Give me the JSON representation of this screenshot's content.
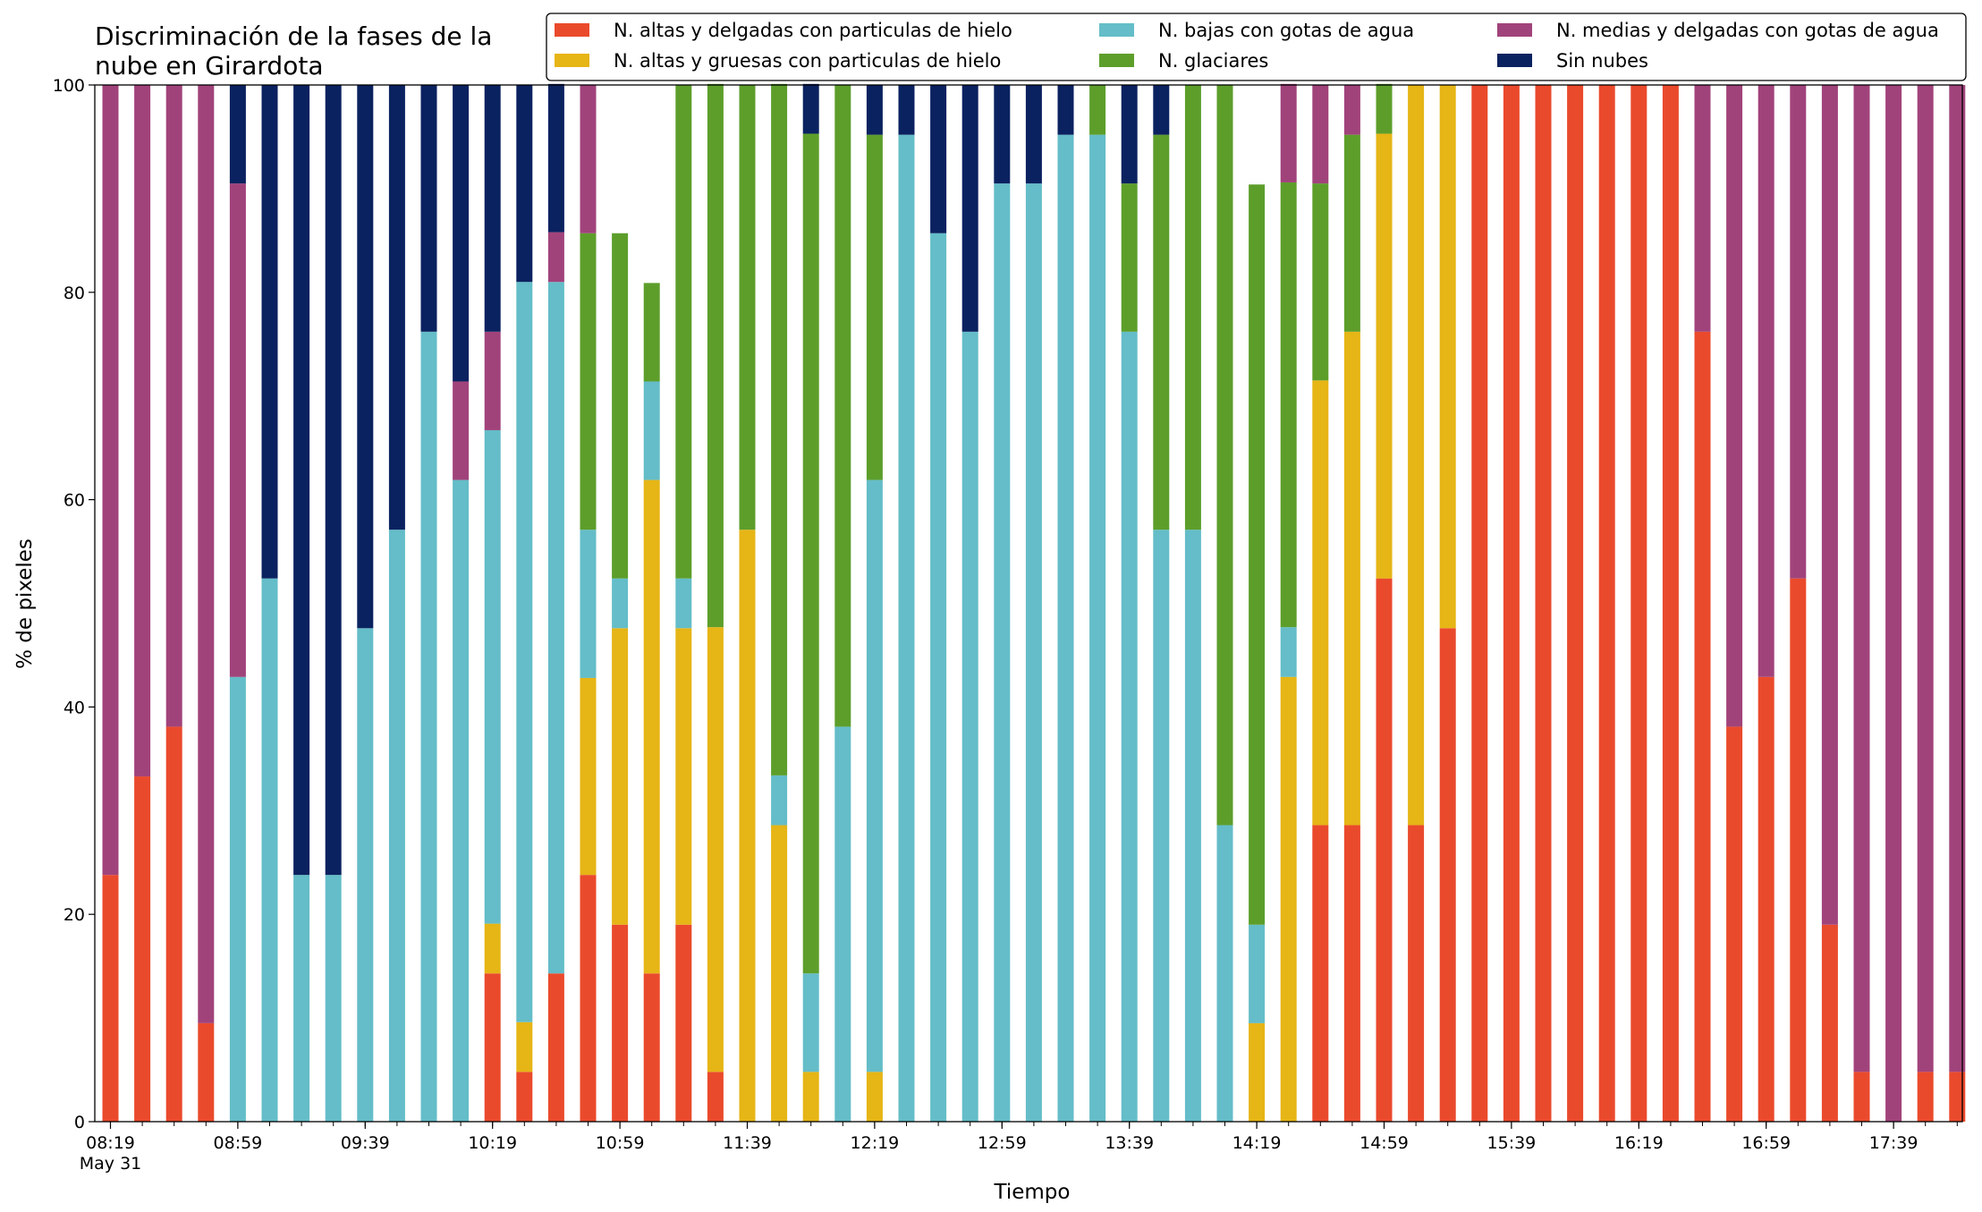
{
  "chart_data": {
    "type": "bar",
    "stacked": true,
    "title_lines": [
      "Discriminación de la fases de la",
      "nube en Girardota"
    ],
    "xlabel": "Tiempo",
    "ylabel": "% de pixeles",
    "ylim": [
      0,
      100
    ],
    "yticks": [
      0,
      20,
      40,
      60,
      80,
      100
    ],
    "grid": false,
    "legend_position": "top-right",
    "legend_columns": 3,
    "x_tick_labels": [
      {
        "bar_index": 0,
        "lines": [
          "08:19",
          "May 31"
        ]
      },
      {
        "bar_index": 4,
        "lines": [
          "08:59"
        ]
      },
      {
        "bar_index": 8,
        "lines": [
          "09:39"
        ]
      },
      {
        "bar_index": 12,
        "lines": [
          "10:19"
        ]
      },
      {
        "bar_index": 16,
        "lines": [
          "10:59"
        ]
      },
      {
        "bar_index": 20,
        "lines": [
          "11:39"
        ]
      },
      {
        "bar_index": 24,
        "lines": [
          "12:19"
        ]
      },
      {
        "bar_index": 28,
        "lines": [
          "12:59"
        ]
      },
      {
        "bar_index": 32,
        "lines": [
          "13:39"
        ]
      },
      {
        "bar_index": 36,
        "lines": [
          "14:19"
        ]
      },
      {
        "bar_index": 40,
        "lines": [
          "14:59"
        ]
      },
      {
        "bar_index": 44,
        "lines": [
          "15:39"
        ]
      },
      {
        "bar_index": 48,
        "lines": [
          "16:19"
        ]
      },
      {
        "bar_index": 52,
        "lines": [
          "16:59"
        ]
      },
      {
        "bar_index": 56,
        "lines": [
          "17:39"
        ]
      }
    ],
    "series": [
      {
        "name": "N. altas y delgadas con particulas de hielo",
        "color": "#ea4a2c",
        "values": [
          23.8,
          33.3,
          38.1,
          9.5,
          0,
          0,
          0,
          0,
          0,
          0,
          0,
          0,
          14.3,
          4.8,
          14.3,
          23.8,
          19.0,
          14.3,
          19.0,
          4.8,
          0,
          0,
          0,
          0,
          0,
          0,
          0,
          0,
          0,
          0,
          0,
          0,
          0,
          0,
          0,
          0,
          0,
          0,
          28.6,
          28.6,
          52.4,
          28.6,
          47.6,
          100,
          100,
          100,
          100,
          100,
          100,
          100,
          76.2,
          38.1,
          42.9,
          52.4,
          19.0,
          4.8,
          0,
          4.8,
          4.8
        ]
      },
      {
        "name": "N. altas y gruesas con particulas de hielo",
        "color": "#e6b516",
        "values": [
          0,
          0,
          0,
          0,
          0,
          0,
          0,
          0,
          0,
          0,
          0,
          0,
          4.8,
          4.8,
          0,
          19.0,
          28.6,
          47.6,
          28.6,
          42.9,
          57.1,
          28.6,
          4.8,
          0,
          4.8,
          0,
          0,
          0,
          0,
          0,
          0,
          0,
          0,
          0,
          0,
          0,
          9.5,
          42.9,
          42.9,
          47.6,
          42.9,
          71.4,
          52.4,
          0,
          0,
          0,
          0,
          0,
          0,
          0,
          0,
          0,
          0,
          0,
          0,
          0,
          0,
          0,
          0
        ]
      },
      {
        "name": "N. bajas con gotas de agua",
        "color": "#64bdc8",
        "values": [
          0,
          0,
          0,
          0,
          42.9,
          52.4,
          23.8,
          23.8,
          47.6,
          57.1,
          76.2,
          61.9,
          47.6,
          71.4,
          66.7,
          14.3,
          4.8,
          9.5,
          4.8,
          0,
          0,
          4.8,
          9.5,
          38.1,
          57.1,
          95.2,
          85.7,
          76.2,
          90.5,
          90.5,
          95.2,
          95.2,
          76.2,
          57.1,
          57.1,
          28.6,
          9.5,
          4.8,
          0,
          0,
          0,
          0,
          0,
          0,
          0,
          0,
          0,
          0,
          0,
          0,
          0,
          0,
          0,
          0,
          0,
          0,
          0,
          0,
          0
        ]
      },
      {
        "name": "N. glaciares",
        "color": "#5d9e2b",
        "values": [
          0,
          0,
          0,
          0,
          0,
          0,
          0,
          0,
          0,
          0,
          0,
          0,
          0,
          0,
          0,
          28.6,
          33.3,
          9.5,
          47.6,
          52.4,
          42.9,
          66.7,
          81.0,
          61.9,
          33.3,
          0,
          0,
          0,
          0,
          0,
          0,
          4.8,
          14.3,
          38.1,
          42.9,
          71.4,
          71.4,
          42.9,
          19.0,
          19.0,
          4.8,
          0,
          0,
          0,
          0,
          0,
          0,
          0,
          0,
          0,
          0,
          0,
          0,
          0,
          0,
          0,
          0,
          0,
          0
        ]
      },
      {
        "name": "N. medias y delgadas con gotas de agua",
        "color": "#a1437b",
        "values": [
          76.2,
          66.7,
          61.9,
          90.5,
          47.6,
          0,
          0,
          0,
          0,
          0,
          0,
          9.5,
          9.5,
          0,
          4.8,
          14.3,
          0,
          0,
          0,
          0,
          0,
          0,
          0,
          0,
          0,
          0,
          0,
          0,
          0,
          0,
          0,
          0,
          0,
          0,
          0,
          0,
          0,
          9.5,
          9.5,
          4.8,
          0,
          0,
          0,
          0,
          0,
          0,
          0,
          0,
          0,
          0,
          23.8,
          61.9,
          57.1,
          47.6,
          81.0,
          95.2,
          100,
          95.2,
          95.2
        ]
      },
      {
        "name": "Sin nubes",
        "color": "#0b2260",
        "values": [
          0,
          0,
          0,
          0,
          9.5,
          47.6,
          76.2,
          76.2,
          52.4,
          42.9,
          23.8,
          28.6,
          23.8,
          19.0,
          14.3,
          0,
          0,
          0,
          0,
          0,
          0,
          0,
          4.8,
          0,
          4.8,
          4.8,
          14.3,
          23.8,
          9.5,
          9.5,
          4.8,
          0,
          9.5,
          4.8,
          0,
          0,
          0,
          0,
          0,
          0,
          0,
          0,
          0,
          0,
          0,
          0,
          0,
          0,
          0,
          0,
          0,
          0,
          0,
          0,
          0,
          0,
          0,
          0,
          0
        ]
      }
    ]
  }
}
